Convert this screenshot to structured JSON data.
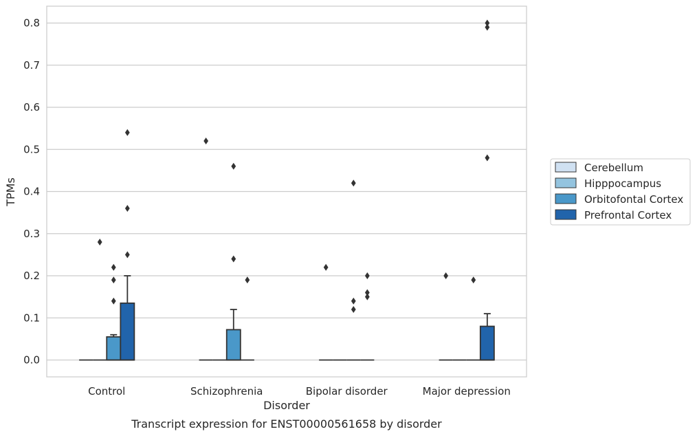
{
  "chart_data": {
    "type": "box",
    "title": "",
    "caption": "Transcript expression for ENST00000561658 by disorder",
    "xlabel": "Disorder",
    "ylabel": "TPMs",
    "ylim": [
      -0.04,
      0.84
    ],
    "yticks": [
      "0.0",
      "0.1",
      "0.2",
      "0.3",
      "0.4",
      "0.5",
      "0.6",
      "0.7",
      "0.8"
    ],
    "grid": "horizontal",
    "legend_position": "right",
    "categories": [
      "Control",
      "Schizophrenia",
      "Bipolar disorder",
      "Major depression"
    ],
    "series": [
      {
        "name": "Cerebellum",
        "color": "#d0e1f2",
        "boxes": [
          {
            "q1": 0,
            "median": 0,
            "q3": 0,
            "whislo": 0,
            "whishi": 0,
            "fliers": []
          },
          {
            "q1": 0,
            "median": 0,
            "q3": 0,
            "whislo": 0,
            "whishi": 0,
            "fliers": [
              0.52
            ]
          },
          {
            "q1": 0,
            "median": 0,
            "q3": 0,
            "whislo": 0,
            "whishi": 0,
            "fliers": [
              0.22
            ]
          },
          {
            "q1": 0,
            "median": 0,
            "q3": 0,
            "whislo": 0,
            "whishi": 0,
            "fliers": [
              0.2
            ]
          }
        ]
      },
      {
        "name": "Hipppocampus",
        "color": "#94c4df",
        "boxes": [
          {
            "q1": 0,
            "median": 0,
            "q3": 0,
            "whislo": 0,
            "whishi": 0,
            "fliers": [
              0.28
            ]
          },
          {
            "q1": 0,
            "median": 0,
            "q3": 0,
            "whislo": 0,
            "whishi": 0,
            "fliers": []
          },
          {
            "q1": 0,
            "median": 0,
            "q3": 0,
            "whislo": 0,
            "whishi": 0,
            "fliers": []
          },
          {
            "q1": 0,
            "median": 0,
            "q3": 0,
            "whislo": 0,
            "whishi": 0,
            "fliers": []
          }
        ]
      },
      {
        "name": "Orbitofontal Cortex",
        "color": "#4a98c9",
        "boxes": [
          {
            "q1": 0,
            "median": 0,
            "q3": 0.055,
            "whislo": 0,
            "whishi": 0.06,
            "fliers": [
              0.22,
              0.19,
              0.14
            ]
          },
          {
            "q1": 0,
            "median": 0,
            "q3": 0.072,
            "whislo": 0,
            "whishi": 0.12,
            "fliers": [
              0.46,
              0.24
            ]
          },
          {
            "q1": 0,
            "median": 0,
            "q3": 0,
            "whislo": 0,
            "whishi": 0,
            "fliers": [
              0.42,
              0.14,
              0.12
            ]
          },
          {
            "q1": 0,
            "median": 0,
            "q3": 0,
            "whislo": 0,
            "whishi": 0,
            "fliers": [
              0.19
            ]
          }
        ]
      },
      {
        "name": "Prefrontal Cortex",
        "color": "#2164ab",
        "boxes": [
          {
            "q1": 0,
            "median": 0,
            "q3": 0.135,
            "whislo": 0,
            "whishi": 0.2,
            "fliers": [
              0.54,
              0.36,
              0.25
            ]
          },
          {
            "q1": 0,
            "median": 0,
            "q3": 0,
            "whislo": 0,
            "whishi": 0,
            "fliers": [
              0.19
            ]
          },
          {
            "q1": 0,
            "median": 0,
            "q3": 0,
            "whislo": 0,
            "whishi": 0,
            "fliers": [
              0.2,
              0.16,
              0.15
            ]
          },
          {
            "q1": 0,
            "median": 0,
            "q3": 0.08,
            "whislo": 0,
            "whishi": 0.11,
            "fliers": [
              0.8,
              0.79,
              0.48
            ]
          }
        ]
      }
    ]
  }
}
